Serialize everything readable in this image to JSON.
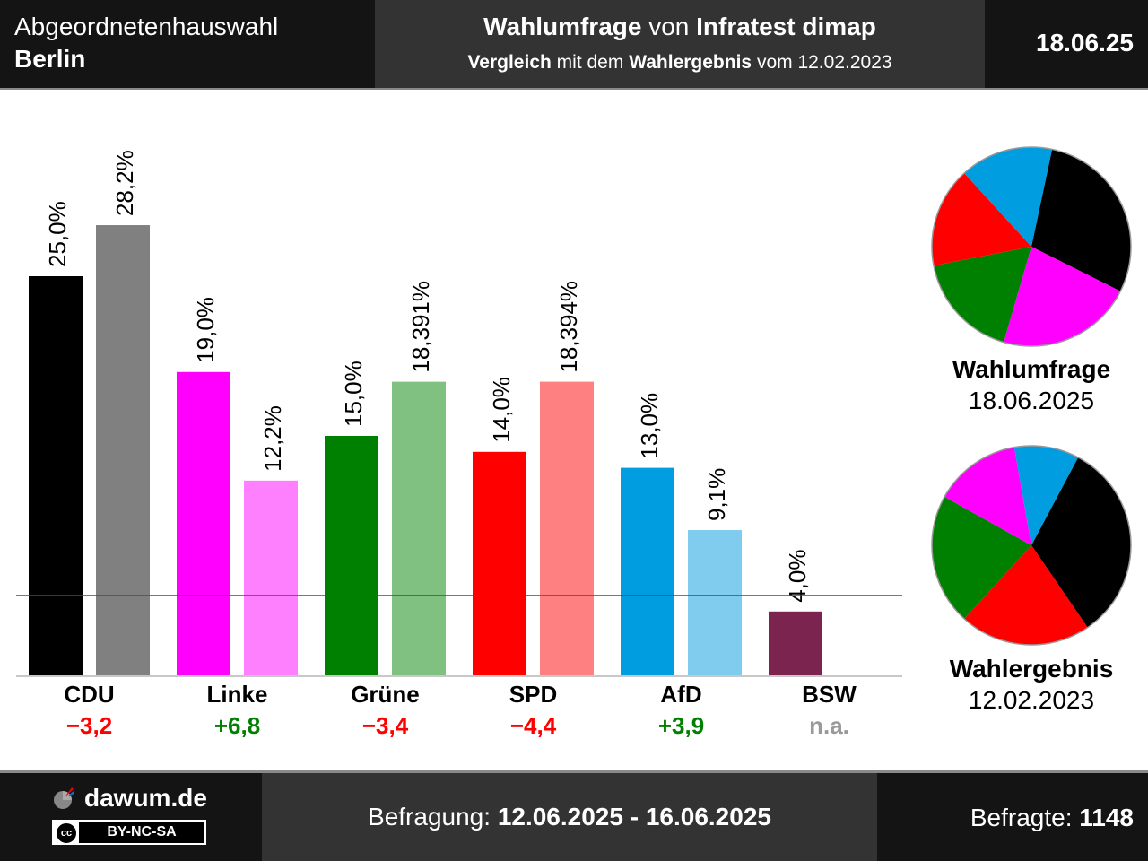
{
  "header": {
    "left_line1": "Abgeordnetenhauswahl",
    "left_line2": "Berlin",
    "title_bold1": "Wahlumfrage",
    "title_mid": " von ",
    "title_bold2": "Infratest dimap",
    "sub_bold1": "Vergleich",
    "sub_mid1": " mit dem ",
    "sub_bold2": "Wahlergebnis",
    "sub_mid2": " vom 12.02.2023",
    "date": "18.06.25"
  },
  "chart_data": {
    "type": "bar",
    "categories": [
      "CDU",
      "Linke",
      "Grüne",
      "SPD",
      "AfD",
      "BSW"
    ],
    "series": [
      {
        "values": [
          25.0,
          19.0,
          15.0,
          14.0,
          13.0,
          4.0
        ],
        "labels": [
          "25,0%",
          "19,0%",
          "15,0%",
          "14,0%",
          "13,0%",
          "4,0%"
        ],
        "colors": [
          "#000000",
          "#ff00ff",
          "#008000",
          "#ff0000",
          "#009de0",
          "#7b2450"
        ]
      },
      {
        "values": [
          28.2,
          12.2,
          18.391,
          18.394,
          9.1,
          null
        ],
        "labels": [
          "28,2%",
          "12,2%",
          "18,391%",
          "18,394%",
          "9,1%",
          ""
        ],
        "colors": [
          "#808080",
          "#ff80ff",
          "#80c080",
          "#ff8080",
          "#80ccef",
          "#bd91a7"
        ]
      }
    ],
    "changes": [
      "−3,2",
      "+6,8",
      "−3,4",
      "−4,4",
      "+3,9",
      "n.a."
    ],
    "change_colors": [
      "#ff0000",
      "#008000",
      "#ff0000",
      "#ff0000",
      "#008000",
      "#999999"
    ],
    "threshold": 5,
    "threshold_color": "#ff0000",
    "ylim": [
      0,
      30
    ],
    "pies": [
      {
        "title": "Wahlumfrage",
        "subtitle": "18.06.2025",
        "slices": [
          {
            "party": "CDU",
            "value": 25.0,
            "color": "#000000"
          },
          {
            "party": "Linke",
            "value": 19.0,
            "color": "#ff00ff"
          },
          {
            "party": "Grüne",
            "value": 15.0,
            "color": "#008000"
          },
          {
            "party": "SPD",
            "value": 14.0,
            "color": "#ff0000"
          },
          {
            "party": "AfD",
            "value": 13.0,
            "color": "#009de0"
          }
        ]
      },
      {
        "title": "Wahlergebnis",
        "subtitle": "12.02.2023",
        "slices": [
          {
            "party": "CDU",
            "value": 28.2,
            "color": "#000000"
          },
          {
            "party": "SPD",
            "value": 18.4,
            "color": "#ff0000"
          },
          {
            "party": "Grüne",
            "value": 18.4,
            "color": "#008000"
          },
          {
            "party": "Linke",
            "value": 12.2,
            "color": "#ff00ff"
          },
          {
            "party": "AfD",
            "value": 9.1,
            "color": "#009de0"
          }
        ]
      }
    ]
  },
  "footer": {
    "brand": "dawum.de",
    "license": "BY-NC-SA",
    "license_icon": "cc",
    "period_label": "Befragung: ",
    "period_value": "12.06.2025 - 16.06.2025",
    "sample_label": "Befragte: ",
    "sample_value": "1148"
  }
}
